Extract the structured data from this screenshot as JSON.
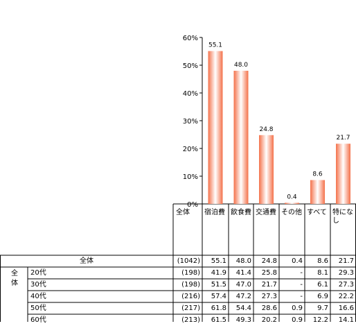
{
  "chart_data": {
    "type": "bar",
    "categories": [
      "宿泊費",
      "飲食費",
      "交通費",
      "その他",
      "すべて",
      "特になし"
    ],
    "values": [
      55.1,
      48.0,
      24.8,
      0.4,
      8.6,
      21.7
    ],
    "ylim": [
      0,
      60
    ],
    "yticks": [
      "0%",
      "10%",
      "20%",
      "30%",
      "40%",
      "50%",
      "60%"
    ],
    "grid": false,
    "bar_colors": {
      "edge": "#F4714A",
      "center": "#FFFFFF"
    }
  },
  "table": {
    "header_total_label": "全体",
    "group_label": "全体",
    "group_label_chars": [
      "全",
      "体"
    ],
    "rows": [
      {
        "label": "全体",
        "n": "(1042)",
        "values": [
          "55.1",
          "48.0",
          "24.8",
          "0.4",
          "8.6",
          "21.7"
        ]
      },
      {
        "label": "20代",
        "n": "(198)",
        "values": [
          "41.9",
          "41.4",
          "25.8",
          "-",
          "8.1",
          "29.3"
        ]
      },
      {
        "label": "30代",
        "n": "(198)",
        "values": [
          "51.5",
          "47.0",
          "21.7",
          "-",
          "6.1",
          "27.3"
        ]
      },
      {
        "label": "40代",
        "n": "(216)",
        "values": [
          "57.4",
          "47.2",
          "27.3",
          "-",
          "6.9",
          "22.2"
        ]
      },
      {
        "label": "50代",
        "n": "(217)",
        "values": [
          "61.8",
          "54.4",
          "28.6",
          "0.9",
          "9.7",
          "16.6"
        ]
      },
      {
        "label": "60代",
        "n": "(213)",
        "values": [
          "61.5",
          "49.3",
          "20.2",
          "0.9",
          "12.2",
          "14.1"
        ]
      }
    ]
  }
}
